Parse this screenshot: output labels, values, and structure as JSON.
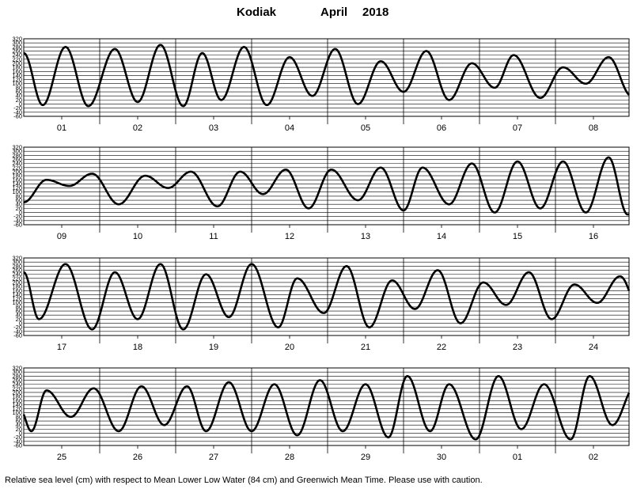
{
  "title": {
    "station": "Kodiak",
    "month": "April",
    "year": "2018"
  },
  "caption": "Relative sea level (cm) with respect to Mean Lower Low Water (84 cm) and Greenwich Mean Time. Please use with caution.",
  "chart_data": {
    "type": "line",
    "units": "cm",
    "ylim": [
      -60,
      320
    ],
    "yticks": [
      320,
      300,
      280,
      260,
      240,
      220,
      200,
      180,
      160,
      140,
      120,
      100,
      80,
      60,
      40,
      20,
      0,
      -20,
      -40,
      -60
    ],
    "grid": true,
    "line_color": "#000000",
    "panels": [
      {
        "day_labels": [
          "01",
          "02",
          "03",
          "04",
          "05",
          "06",
          "07",
          "08"
        ],
        "extrema": [
          {
            "d": 0.0,
            "v": 250
          },
          {
            "d": 0.25,
            "v": -5
          },
          {
            "d": 0.55,
            "v": 280
          },
          {
            "d": 0.85,
            "v": -10
          },
          {
            "d": 1.2,
            "v": 270
          },
          {
            "d": 1.5,
            "v": 10
          },
          {
            "d": 1.8,
            "v": 290
          },
          {
            "d": 2.1,
            "v": -10
          },
          {
            "d": 2.35,
            "v": 250
          },
          {
            "d": 2.6,
            "v": 20
          },
          {
            "d": 2.9,
            "v": 280
          },
          {
            "d": 3.2,
            "v": -5
          },
          {
            "d": 3.5,
            "v": 230
          },
          {
            "d": 3.8,
            "v": 40
          },
          {
            "d": 4.1,
            "v": 270
          },
          {
            "d": 4.4,
            "v": 0
          },
          {
            "d": 4.7,
            "v": 210
          },
          {
            "d": 5.0,
            "v": 60
          },
          {
            "d": 5.3,
            "v": 260
          },
          {
            "d": 5.6,
            "v": 20
          },
          {
            "d": 5.9,
            "v": 200
          },
          {
            "d": 6.2,
            "v": 80
          },
          {
            "d": 6.45,
            "v": 240
          },
          {
            "d": 6.8,
            "v": 30
          },
          {
            "d": 7.1,
            "v": 180
          },
          {
            "d": 7.4,
            "v": 100
          },
          {
            "d": 7.7,
            "v": 230
          },
          {
            "d": 8.0,
            "v": 40
          },
          {
            "d": 8.3,
            "v": 170
          },
          {
            "d": 8.6,
            "v": 120
          },
          {
            "d": 8.9,
            "v": 210
          },
          {
            "d": 9.3,
            "v": 40
          }
        ]
      },
      {
        "day_labels": [
          "09",
          "10",
          "11",
          "12",
          "13",
          "14",
          "15",
          "16"
        ],
        "extrema": [
          {
            "d": 0.0,
            "v": 50
          },
          {
            "d": 0.3,
            "v": 160
          },
          {
            "d": 0.6,
            "v": 130
          },
          {
            "d": 0.9,
            "v": 190
          },
          {
            "d": 1.25,
            "v": 40
          },
          {
            "d": 1.6,
            "v": 180
          },
          {
            "d": 1.9,
            "v": 120
          },
          {
            "d": 2.2,
            "v": 200
          },
          {
            "d": 2.55,
            "v": 30
          },
          {
            "d": 2.85,
            "v": 200
          },
          {
            "d": 3.15,
            "v": 90
          },
          {
            "d": 3.45,
            "v": 210
          },
          {
            "d": 3.75,
            "v": 20
          },
          {
            "d": 4.05,
            "v": 210
          },
          {
            "d": 4.4,
            "v": 60
          },
          {
            "d": 4.7,
            "v": 220
          },
          {
            "d": 5.0,
            "v": 10
          },
          {
            "d": 5.25,
            "v": 220
          },
          {
            "d": 5.6,
            "v": 40
          },
          {
            "d": 5.9,
            "v": 240
          },
          {
            "d": 6.2,
            "v": 0
          },
          {
            "d": 6.5,
            "v": 250
          },
          {
            "d": 6.8,
            "v": 20
          },
          {
            "d": 7.1,
            "v": 250
          },
          {
            "d": 7.4,
            "v": 0
          },
          {
            "d": 7.7,
            "v": 270
          },
          {
            "d": 7.95,
            "v": -10
          },
          {
            "d": 8.3,
            "v": 250
          },
          {
            "d": 8.6,
            "v": 0
          },
          {
            "d": 8.9,
            "v": 270
          },
          {
            "d": 9.2,
            "v": -20
          },
          {
            "d": 9.5,
            "v": 280
          },
          {
            "d": 9.8,
            "v": -30
          },
          {
            "d": 10.15,
            "v": 260
          },
          {
            "d": 10.5,
            "v": 0
          }
        ]
      },
      {
        "day_labels": [
          "17",
          "18",
          "19",
          "20",
          "21",
          "22",
          "23",
          "24"
        ],
        "extrema": [
          {
            "d": 0.0,
            "v": 250
          },
          {
            "d": 0.2,
            "v": 20
          },
          {
            "d": 0.55,
            "v": 290
          },
          {
            "d": 0.9,
            "v": -30
          },
          {
            "d": 1.2,
            "v": 250
          },
          {
            "d": 1.5,
            "v": 20
          },
          {
            "d": 1.8,
            "v": 290
          },
          {
            "d": 2.1,
            "v": -30
          },
          {
            "d": 2.4,
            "v": 240
          },
          {
            "d": 2.7,
            "v": 30
          },
          {
            "d": 3.0,
            "v": 290
          },
          {
            "d": 3.35,
            "v": -20
          },
          {
            "d": 3.6,
            "v": 220
          },
          {
            "d": 3.95,
            "v": 50
          },
          {
            "d": 4.25,
            "v": 280
          },
          {
            "d": 4.55,
            "v": -20
          },
          {
            "d": 4.85,
            "v": 210
          },
          {
            "d": 5.15,
            "v": 70
          },
          {
            "d": 5.45,
            "v": 260
          },
          {
            "d": 5.75,
            "v": 0
          },
          {
            "d": 6.05,
            "v": 200
          },
          {
            "d": 6.35,
            "v": 90
          },
          {
            "d": 6.65,
            "v": 250
          },
          {
            "d": 6.95,
            "v": 20
          },
          {
            "d": 7.25,
            "v": 190
          },
          {
            "d": 7.55,
            "v": 100
          },
          {
            "d": 7.85,
            "v": 230
          },
          {
            "d": 8.15,
            "v": 20
          },
          {
            "d": 8.45,
            "v": 190
          },
          {
            "d": 8.75,
            "v": 110
          },
          {
            "d": 9.05,
            "v": 220
          },
          {
            "d": 9.4,
            "v": 40
          }
        ]
      },
      {
        "day_labels": [
          "25",
          "26",
          "27",
          "28",
          "29",
          "30",
          "01",
          "02"
        ],
        "extrema": [
          {
            "d": -0.05,
            "v": 120
          },
          {
            "d": 0.1,
            "v": 10
          },
          {
            "d": 0.3,
            "v": 210
          },
          {
            "d": 0.62,
            "v": 80
          },
          {
            "d": 0.92,
            "v": 220
          },
          {
            "d": 1.25,
            "v": 10
          },
          {
            "d": 1.55,
            "v": 230
          },
          {
            "d": 1.85,
            "v": 40
          },
          {
            "d": 2.15,
            "v": 230
          },
          {
            "d": 2.4,
            "v": 10
          },
          {
            "d": 2.7,
            "v": 250
          },
          {
            "d": 3.0,
            "v": 10
          },
          {
            "d": 3.3,
            "v": 240
          },
          {
            "d": 3.6,
            "v": -10
          },
          {
            "d": 3.9,
            "v": 260
          },
          {
            "d": 4.2,
            "v": 10
          },
          {
            "d": 4.5,
            "v": 240
          },
          {
            "d": 4.8,
            "v": -20
          },
          {
            "d": 5.05,
            "v": 280
          },
          {
            "d": 5.35,
            "v": 10
          },
          {
            "d": 5.6,
            "v": 240
          },
          {
            "d": 5.95,
            "v": -30
          },
          {
            "d": 6.25,
            "v": 280
          },
          {
            "d": 6.55,
            "v": 20
          },
          {
            "d": 6.85,
            "v": 240
          },
          {
            "d": 7.2,
            "v": -30
          },
          {
            "d": 7.45,
            "v": 280
          },
          {
            "d": 7.75,
            "v": 40
          },
          {
            "d": 8.05,
            "v": 230
          },
          {
            "d": 8.4,
            "v": -30
          },
          {
            "d": 8.7,
            "v": 280
          },
          {
            "d": 9.0,
            "v": 40
          },
          {
            "d": 9.3,
            "v": 240
          }
        ]
      }
    ]
  }
}
